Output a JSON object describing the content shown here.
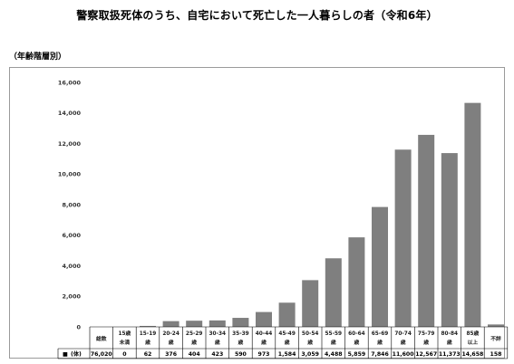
{
  "title": "警察取扱死体のうち、自宅において死亡した一人暮らしの者（令和6年）",
  "subtitle": "（年齢階層別）",
  "chart_data": {
    "type": "bar",
    "title": "警察取扱死体のうち、自宅において死亡した一人暮らしの者（令和6年）",
    "subtitle": "（年齢階層別）",
    "ylim": [
      0,
      16000
    ],
    "yticks": [
      "0",
      "2,000",
      "4,000",
      "6,000",
      "8,000",
      "10,000",
      "12,000",
      "14,000",
      "16,000"
    ],
    "grid": false,
    "bar_color": "#7f7f7f",
    "row_label": "(体)",
    "row_marker": "■",
    "categories": [
      {
        "line1": "総数",
        "line2": ""
      },
      {
        "line1": "15歳",
        "line2": "未満"
      },
      {
        "line1": "15-19",
        "line2": "歳"
      },
      {
        "line1": "20-24",
        "line2": "歳"
      },
      {
        "line1": "25-29",
        "line2": "歳"
      },
      {
        "line1": "30-34",
        "line2": "歳"
      },
      {
        "line1": "35-39",
        "line2": "歳"
      },
      {
        "line1": "40-44",
        "line2": "歳"
      },
      {
        "line1": "45-49",
        "line2": "歳"
      },
      {
        "line1": "50-54",
        "line2": "歳"
      },
      {
        "line1": "55-59",
        "line2": "歳"
      },
      {
        "line1": "60-64",
        "line2": "歳"
      },
      {
        "line1": "65-69",
        "line2": "歳"
      },
      {
        "line1": "70-74",
        "line2": "歳"
      },
      {
        "line1": "75-79",
        "line2": "歳"
      },
      {
        "line1": "80-84",
        "line2": "歳"
      },
      {
        "line1": "85歳",
        "line2": "以上"
      },
      {
        "line1": "不詳",
        "line2": ""
      }
    ],
    "values": [
      76020,
      0,
      62,
      376,
      404,
      423,
      590,
      973,
      1584,
      3059,
      4488,
      5859,
      7846,
      11600,
      12567,
      11373,
      14658,
      158
    ],
    "value_labels": [
      "76,020",
      "0",
      "62",
      "376",
      "404",
      "423",
      "590",
      "973",
      "1,584",
      "3,059",
      "4,488",
      "5,859",
      "7,846",
      "11,600",
      "12,567",
      "11,373",
      "14,658",
      "158"
    ],
    "plotted": [
      false,
      true,
      true,
      true,
      true,
      true,
      true,
      true,
      true,
      true,
      true,
      true,
      true,
      true,
      true,
      true,
      true,
      true
    ]
  }
}
